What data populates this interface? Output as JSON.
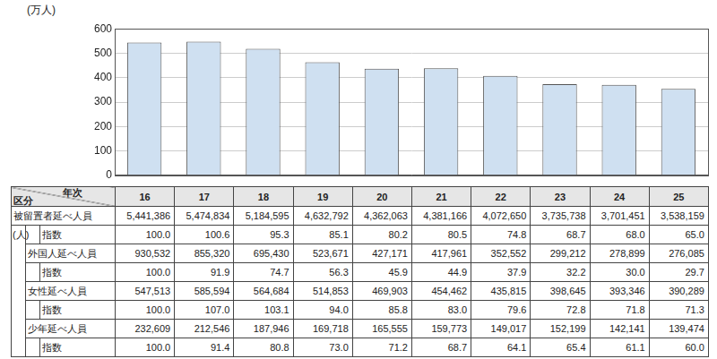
{
  "chart_data": {
    "type": "bar",
    "y_label": "(万人)",
    "categories": [
      "16",
      "17",
      "18",
      "19",
      "20",
      "21",
      "22",
      "23",
      "24",
      "25"
    ],
    "values": [
      544.1386,
      547.4834,
      518.4595,
      463.2792,
      436.2063,
      438.1166,
      407.265,
      373.5738,
      370.1451,
      353.8159
    ],
    "color": "#cfe0f1",
    "ylim": [
      0,
      600
    ],
    "yticks": [
      0,
      100,
      200,
      300,
      400,
      500,
      600
    ],
    "grid": true,
    "tick_labels": "y"
  },
  "table": {
    "corner": {
      "row_header": "区分",
      "column_header": "年次"
    },
    "unit": "(人)",
    "groups": [
      {
        "label": "被留置者延べ人員",
        "values": [
          "5,441,386",
          "5,474,834",
          "5,184,595",
          "4,632,792",
          "4,362,063",
          "4,381,166",
          "4,072,650",
          "3,735,738",
          "3,701,451",
          "3,538,159"
        ],
        "index": {
          "label": "指数",
          "values": [
            "100.0",
            "100.6",
            "95.3",
            "85.1",
            "80.2",
            "80.5",
            "74.8",
            "68.7",
            "68.0",
            "65.0"
          ]
        }
      },
      {
        "label": "外国人延べ人員",
        "values": [
          "930,532",
          "855,320",
          "695,430",
          "523,671",
          "427,171",
          "417,961",
          "352,552",
          "299,212",
          "278,899",
          "276,085"
        ],
        "index": {
          "label": "指数",
          "values": [
            "100.0",
            "91.9",
            "74.7",
            "56.3",
            "45.9",
            "44.9",
            "37.9",
            "32.2",
            "30.0",
            "29.7"
          ]
        }
      },
      {
        "label": "女性延べ人員",
        "values": [
          "547,513",
          "585,594",
          "564,684",
          "514,853",
          "469,903",
          "454,462",
          "435,815",
          "398,645",
          "393,346",
          "390,289"
        ],
        "index": {
          "label": "指数",
          "values": [
            "100.0",
            "107.0",
            "103.1",
            "94.0",
            "85.8",
            "83.0",
            "79.6",
            "72.8",
            "71.8",
            "71.3"
          ]
        }
      },
      {
        "label": "少年延べ人員",
        "values": [
          "232,609",
          "212,546",
          "187,946",
          "169,718",
          "165,555",
          "159,773",
          "149,017",
          "152,199",
          "142,141",
          "139,474"
        ],
        "index": {
          "label": "指数",
          "values": [
            "100.0",
            "91.4",
            "80.8",
            "73.0",
            "71.2",
            "68.7",
            "64.1",
            "65.4",
            "61.1",
            "60.0"
          ]
        }
      }
    ]
  }
}
